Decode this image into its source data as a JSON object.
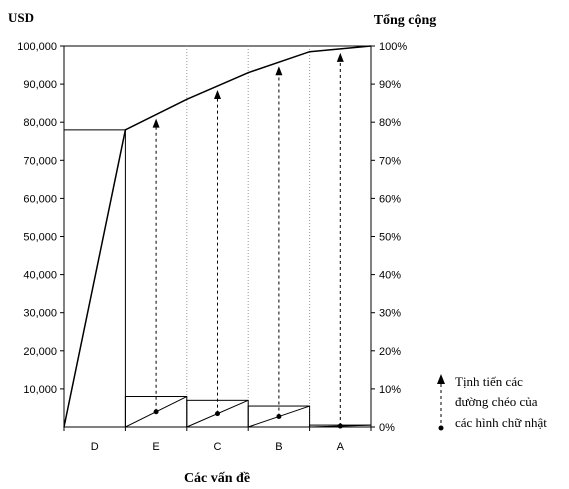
{
  "chart_data": {
    "type": "bar",
    "y_left_label": "USD",
    "y_right_label": "Tổng cộng",
    "xlabel": "Các vấn đề",
    "categories": [
      "D",
      "E",
      "C",
      "B",
      "A"
    ],
    "values": [
      78000,
      8000,
      7000,
      5500,
      500
    ],
    "cumulative_values": [
      78000,
      86000,
      93000,
      98500,
      100000
    ],
    "ylim_left": [
      0,
      100000
    ],
    "ylim_right": [
      0,
      100
    ],
    "y_left_ticks": [
      "10,000",
      "20,000",
      "30,000",
      "40,000",
      "50,000",
      "60,000",
      "70,000",
      "80,000",
      "90,000",
      "100,000"
    ],
    "y_right_ticks": [
      "0%",
      "10%",
      "20%",
      "30%",
      "40%",
      "50%",
      "60%",
      "70%",
      "80%",
      "90%",
      "100%"
    ],
    "legend": "top-right outside",
    "legend_lines": [
      "Tịnh tiến các",
      "đường chéo của",
      "các hình chữ nhật"
    ],
    "grid": false
  }
}
